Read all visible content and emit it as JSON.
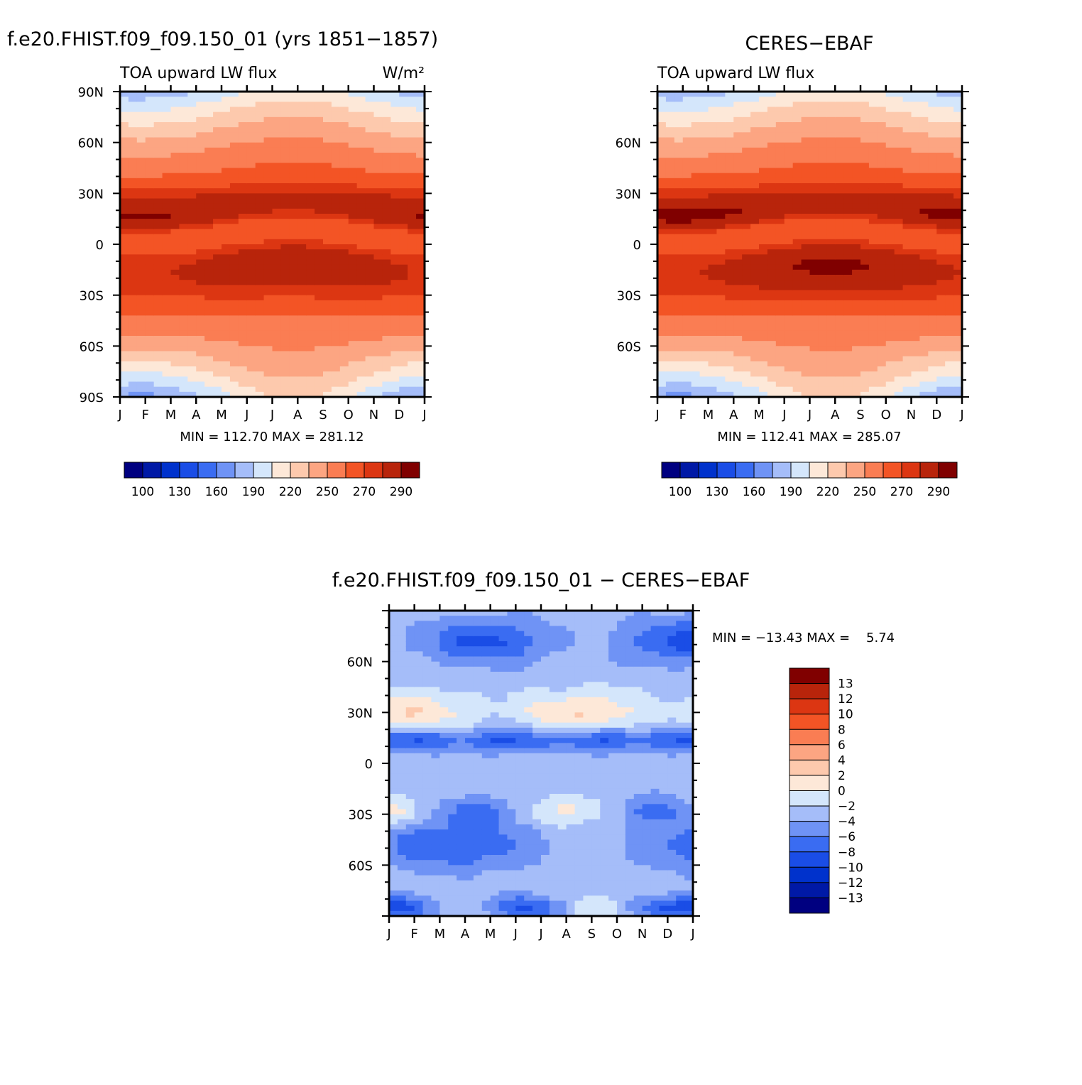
{
  "colors": {
    "lw_levels": [
      "#000080",
      "#0019a6",
      "#0032cc",
      "#1a4de6",
      "#3a6cf2",
      "#6f93f5",
      "#a5bdf9",
      "#d4e6fb",
      "#fde8d8",
      "#fdc9ad",
      "#fca582",
      "#fa7d53",
      "#f35425",
      "#dc3612",
      "#b8240b",
      "#800000"
    ],
    "diff_levels": [
      "#800000",
      "#b8240b",
      "#dc3612",
      "#f35425",
      "#fa7d53",
      "#fca582",
      "#fdc9ad",
      "#fde8d8",
      "#d4e6fb",
      "#a5bdf9",
      "#6f93f5",
      "#3a6cf2",
      "#1a4de6",
      "#0032cc",
      "#0019a6",
      "#000080"
    ]
  },
  "chart_data": [
    {
      "type": "heatmap",
      "title": "f.e20.FHIST.f09_f09.150_01 (yrs 1851−1857)",
      "subtitle_left": "TOA upward LW flux",
      "subtitle_right": "W/m²",
      "x_ticklabels": [
        "J",
        "F",
        "M",
        "A",
        "M",
        "J",
        "J",
        "A",
        "S",
        "O",
        "N",
        "D",
        "J"
      ],
      "y_ticklabels": [
        "90N",
        "60N",
        "30N",
        "0",
        "30S",
        "60S",
        "90S"
      ],
      "ylim": [
        -90,
        90
      ],
      "min_max_text": "MIN = 112.70 MAX = 281.12",
      "colorbar_labels": [
        "100",
        "130",
        "160",
        "190",
        "220",
        "250",
        "270",
        "290"
      ],
      "model": "model"
    },
    {
      "type": "heatmap",
      "title": "CERES−EBAF",
      "subtitle_left": "TOA upward LW flux",
      "x_ticklabels": [
        "J",
        "F",
        "M",
        "A",
        "M",
        "J",
        "J",
        "A",
        "S",
        "O",
        "N",
        "D",
        "J"
      ],
      "y_ticklabels": [
        "60N",
        "30N",
        "0",
        "30S",
        "60S"
      ],
      "ylim": [
        -90,
        90
      ],
      "min_max_text": "MIN = 112.41 MAX = 285.07",
      "colorbar_labels": [
        "100",
        "130",
        "160",
        "190",
        "220",
        "250",
        "270",
        "290"
      ],
      "model": "obs"
    },
    {
      "type": "heatmap",
      "title": "f.e20.FHIST.f09_f09.150_01  −  CERES−EBAF",
      "x_ticklabels": [
        "J",
        "F",
        "M",
        "A",
        "M",
        "J",
        "J",
        "A",
        "S",
        "O",
        "N",
        "D",
        "J"
      ],
      "y_ticklabels": [
        "60N",
        "30N",
        "0",
        "30S",
        "60S"
      ],
      "ylim": [
        -90,
        90
      ],
      "min_max_text": "MIN = −13.43 MAX =    5.74",
      "colorbar_labels": [
        "13",
        "12",
        "10",
        "8",
        "6",
        "4",
        "2",
        "0",
        "−2",
        "−4",
        "−6",
        "−8",
        "−10",
        "−12",
        "−13"
      ],
      "model": "diff"
    }
  ]
}
